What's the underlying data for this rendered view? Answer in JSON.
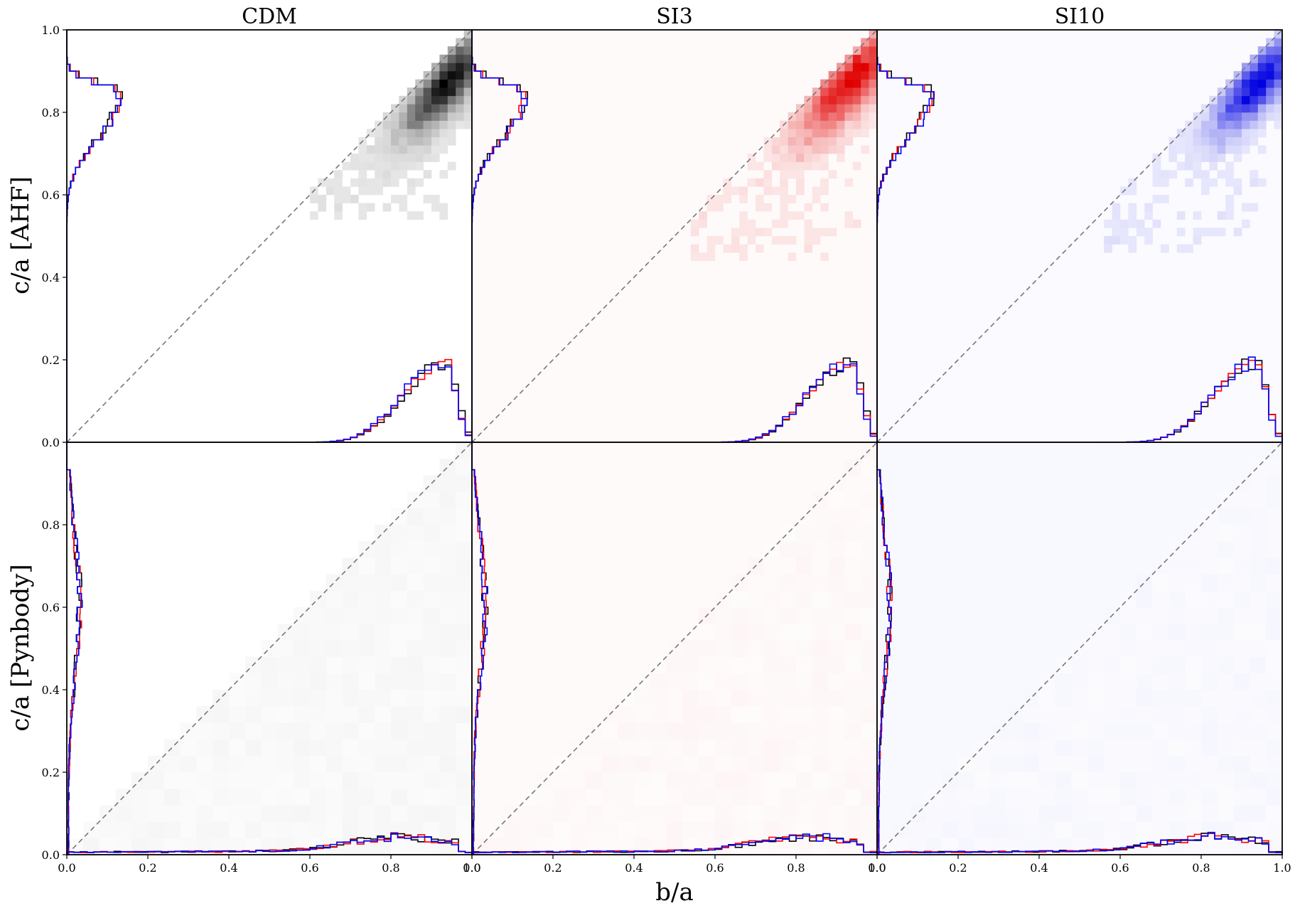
{
  "chart_data": {
    "type": "heatmap",
    "layout": "2x3 grid of panels with shared axes",
    "column_titles": [
      "CDM",
      "SI3",
      "SI10"
    ],
    "row_ylabels": [
      "c/a [AHF]",
      "c/a [Pynbody]"
    ],
    "xlabel": "b/a",
    "xlim": [
      0.0,
      1.0
    ],
    "ylim": [
      0.0,
      1.0
    ],
    "x_ticks": [
      "0.0",
      "0.2",
      "0.4",
      "0.6",
      "0.8",
      "1.0"
    ],
    "y_ticks_top": [
      "0.0",
      "0.2",
      "0.4",
      "0.6",
      "0.8",
      "1.0"
    ],
    "y_ticks_bottom": [
      "0.0",
      "0.2",
      "0.4",
      "0.6",
      "0.8"
    ],
    "reference_line": {
      "style": "dashed",
      "color": "#777777",
      "from": [
        0,
        0
      ],
      "to": [
        1,
        1
      ]
    },
    "colormaps": {
      "CDM": "#000000",
      "SI3": "#e00000",
      "SI10": "#0000e0"
    },
    "marginal_hist_colors": {
      "CDM": "#000000",
      "SI3": "#ff0000",
      "SI10": "#0000ff"
    },
    "panels": [
      {
        "row": 0,
        "column": "CDM",
        "density_2d": {
          "peak_b_over_a": 0.94,
          "peak_c_over_a": 0.87,
          "spread_b": 0.06,
          "spread_c": 0.06,
          "tail_to": [
            0.6,
            0.55
          ],
          "background_tint": "#ffffff"
        },
        "marginal_b_over_a": {
          "peak_at": 0.94,
          "peak_height": 0.19,
          "support": [
            0.55,
            1.0
          ]
        },
        "marginal_c_over_a": {
          "peak_at": 0.85,
          "peak_height": 0.13,
          "support": [
            0.5,
            0.97
          ]
        }
      },
      {
        "row": 0,
        "column": "SI3",
        "density_2d": {
          "peak_b_over_a": 0.94,
          "peak_c_over_a": 0.88,
          "spread_b": 0.07,
          "spread_c": 0.07,
          "tail_to": [
            0.55,
            0.45
          ],
          "background_tint": "#fffafa"
        },
        "marginal_b_over_a": {
          "peak_at": 0.94,
          "peak_height": 0.19,
          "support": [
            0.55,
            1.0
          ]
        },
        "marginal_c_over_a": {
          "peak_at": 0.85,
          "peak_height": 0.13,
          "support": [
            0.5,
            0.97
          ]
        }
      },
      {
        "row": 0,
        "column": "SI10",
        "density_2d": {
          "peak_b_over_a": 0.94,
          "peak_c_over_a": 0.87,
          "spread_b": 0.06,
          "spread_c": 0.06,
          "tail_to": [
            0.56,
            0.47
          ],
          "background_tint": "#fafaff"
        },
        "marginal_b_over_a": {
          "peak_at": 0.94,
          "peak_height": 0.19,
          "support": [
            0.55,
            1.0
          ]
        },
        "marginal_c_over_a": {
          "peak_at": 0.85,
          "peak_height": 0.13,
          "support": [
            0.5,
            0.97
          ]
        }
      },
      {
        "row": 1,
        "column": "CDM",
        "density_2d": {
          "distribution": "nearly uniform faint",
          "background_tint": "#ffffff"
        },
        "marginal_b_over_a": {
          "shape": "low plateau rising to ~0.045 between 0.6 and 0.95",
          "support": [
            0.0,
            1.0
          ]
        },
        "marginal_c_over_a": {
          "shape": "broad bump ~0.03 between 0.4 and 0.85",
          "support": [
            0.0,
            0.95
          ]
        }
      },
      {
        "row": 1,
        "column": "SI3",
        "density_2d": {
          "distribution": "nearly uniform faint",
          "background_tint": "#fffafa"
        },
        "marginal_b_over_a": {
          "shape": "low plateau rising to ~0.045 between 0.6 and 0.95",
          "support": [
            0.0,
            1.0
          ]
        },
        "marginal_c_over_a": {
          "shape": "broad bump ~0.03 between 0.4 and 0.85",
          "support": [
            0.0,
            0.95
          ]
        }
      },
      {
        "row": 1,
        "column": "SI10",
        "density_2d": {
          "distribution": "nearly uniform faint",
          "background_tint": "#f8f8ff"
        },
        "marginal_b_over_a": {
          "shape": "low plateau rising to ~0.045 between 0.6 and 0.95",
          "support": [
            0.0,
            1.0
          ]
        },
        "marginal_c_over_a": {
          "shape": "broad bump ~0.03 between 0.4 and 0.85",
          "support": [
            0.0,
            0.95
          ]
        }
      }
    ]
  }
}
